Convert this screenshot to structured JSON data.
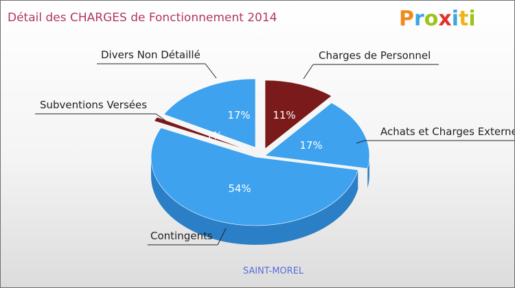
{
  "header": {
    "title": "Détail des CHARGES de Fonctionnement 2014",
    "brand": "Proxiti"
  },
  "colors": {
    "blue": "#3ea2ef",
    "blue_side": "#2b7fc6",
    "red": "#7a1a1a",
    "red_side": "#4e0e0e",
    "title": "#b3365b"
  },
  "chart_data": {
    "type": "pie",
    "title": "Détail des CHARGES de Fonctionnement 2014",
    "subtitle": "SAINT-MOREL",
    "slices": [
      {
        "label": "Charges de Personnel",
        "value": 11,
        "display": "11%",
        "color": "#7a1a1a"
      },
      {
        "label": "Achats et Charges Externes",
        "value": 17,
        "display": "17%",
        "color": "#3ea2ef"
      },
      {
        "label": "Contingents",
        "value": 54,
        "display": "54%",
        "color": "#3ea2ef"
      },
      {
        "label": "Subventions Versées",
        "value": 1,
        "display": "1%",
        "color": "#7a1a1a"
      },
      {
        "label": "Divers Non Détaillé",
        "value": 17,
        "display": "17%",
        "color": "#3ea2ef"
      }
    ]
  }
}
